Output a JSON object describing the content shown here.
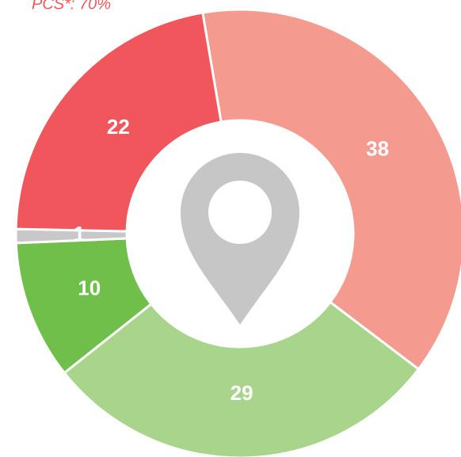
{
  "chart_data": {
    "type": "donut",
    "annotation": "PCS*: 70%",
    "values": [
      38,
      29,
      10,
      1,
      22
    ],
    "colors": [
      "#f59a8f",
      "#a8d48c",
      "#6fbf4a",
      "#c8c8c8",
      "#f0565b"
    ]
  }
}
